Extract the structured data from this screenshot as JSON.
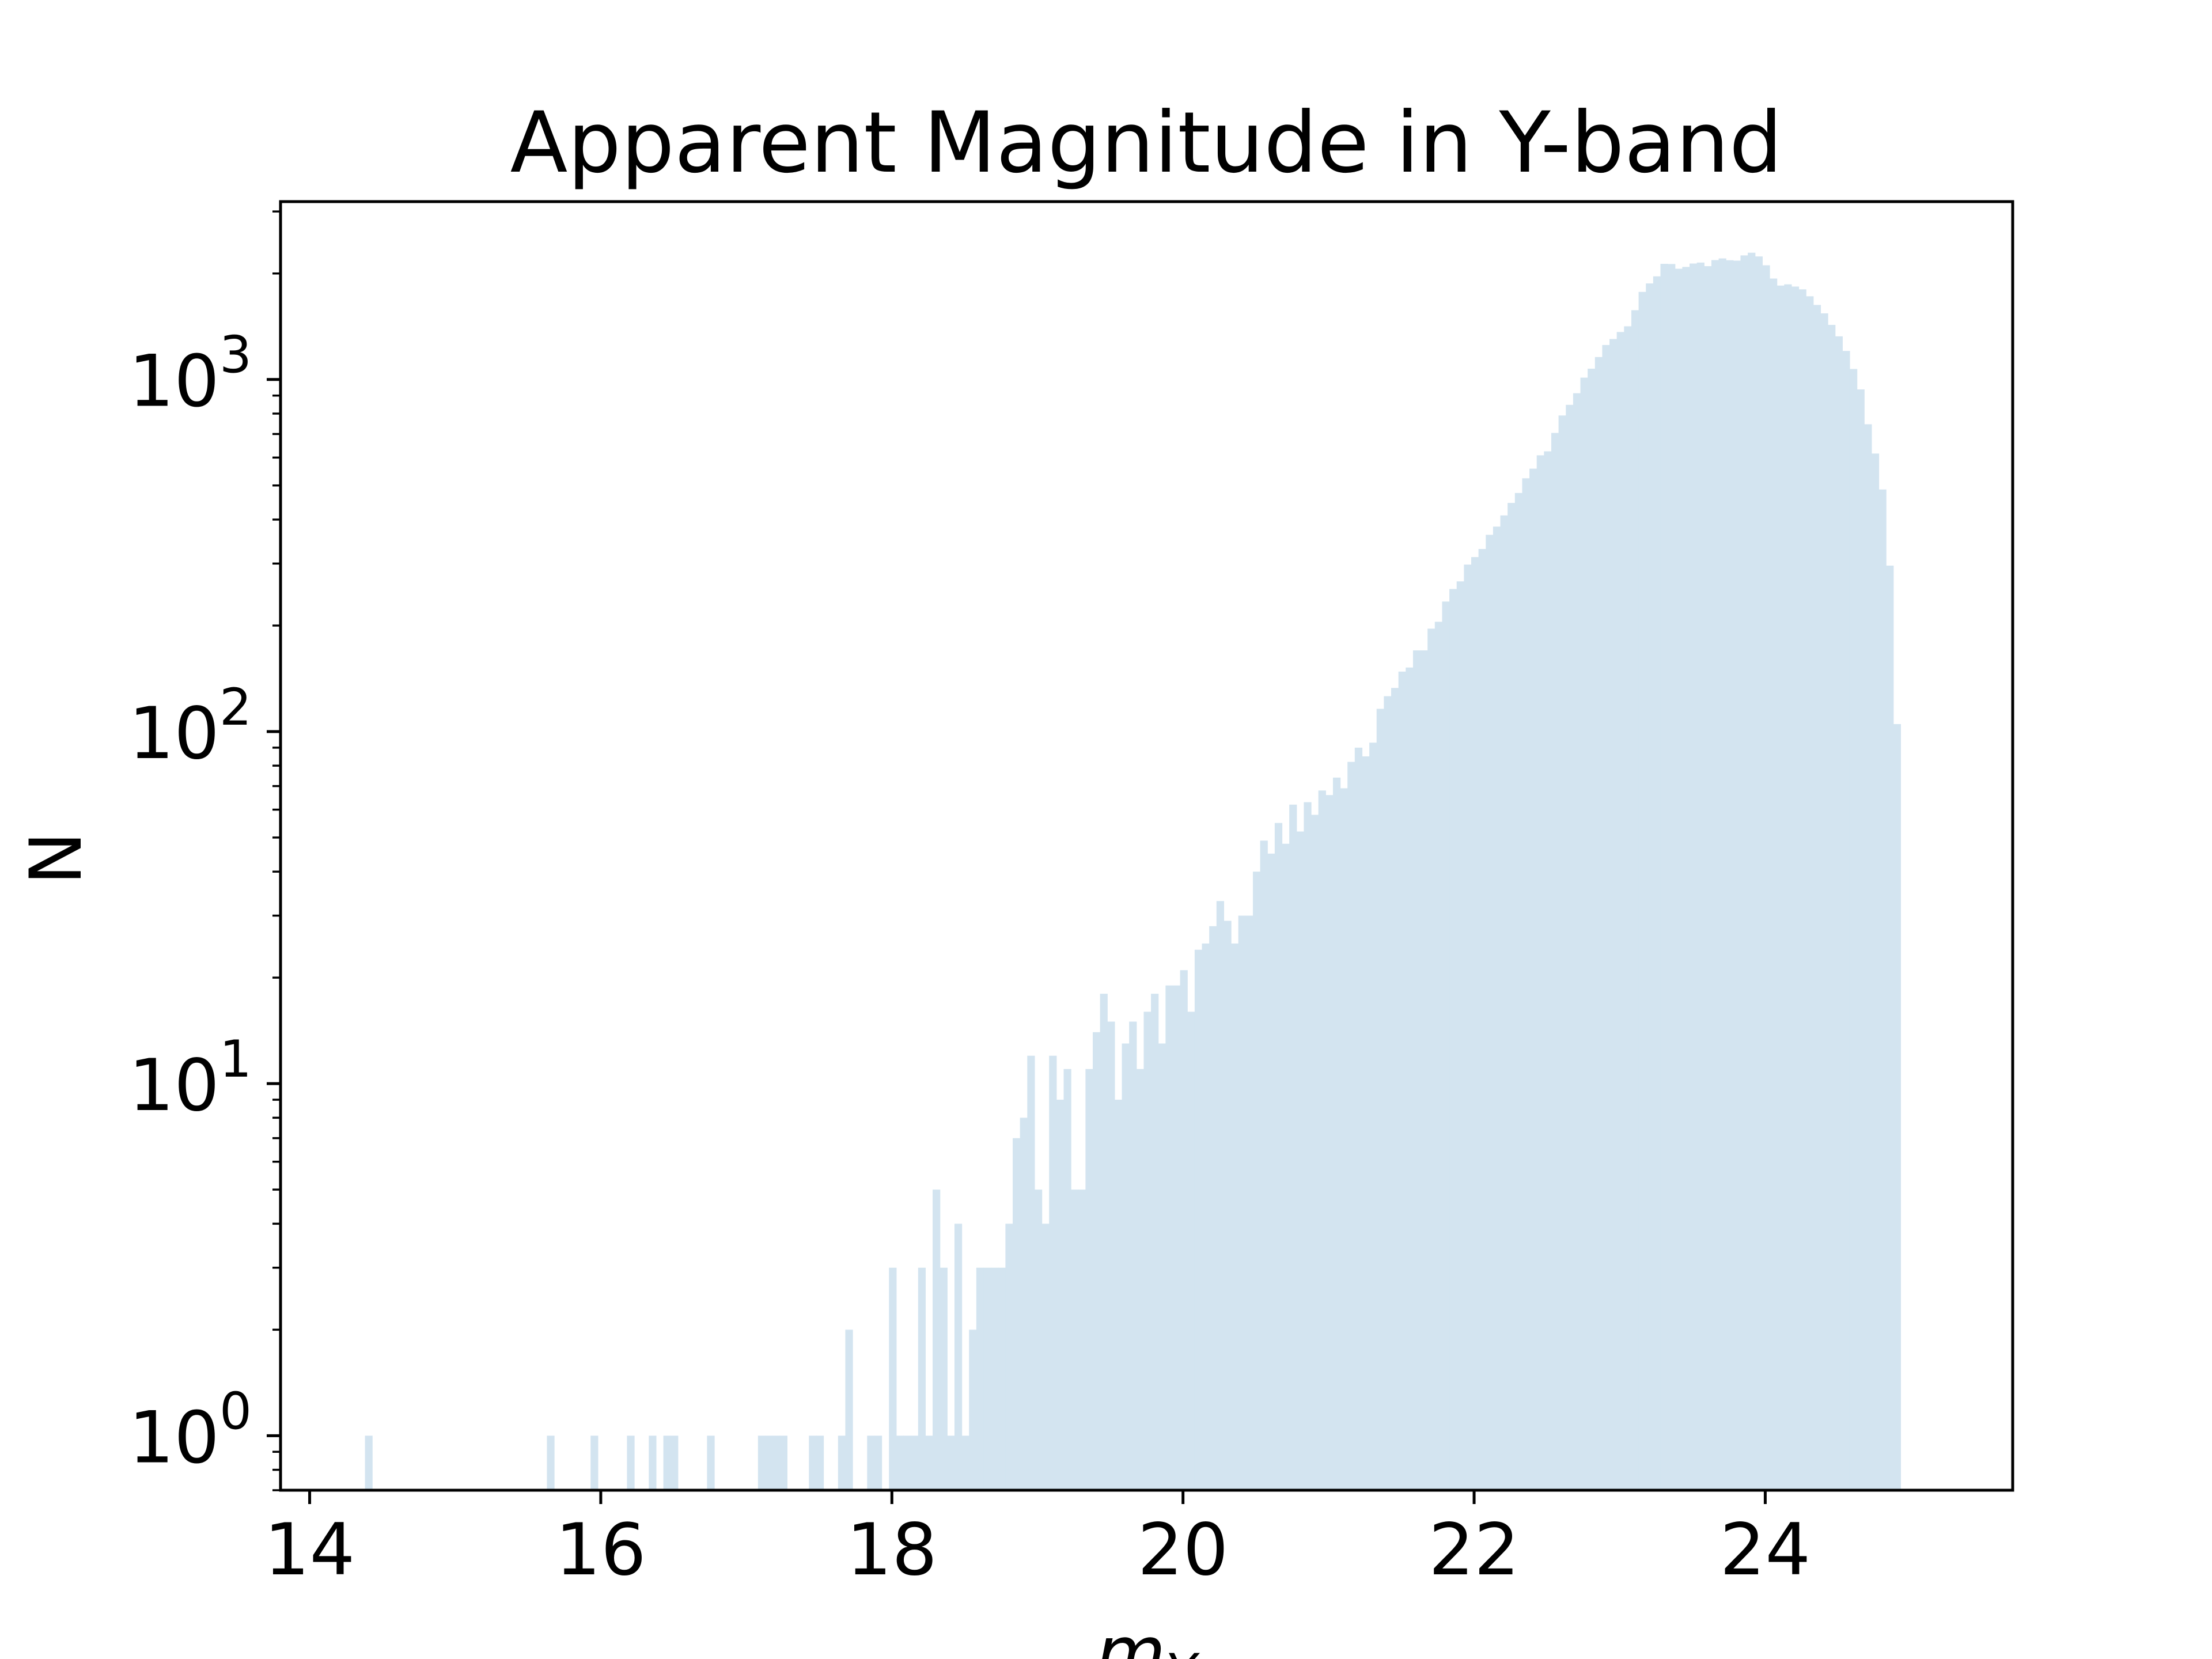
{
  "chart_data": {
    "type": "bar",
    "title": "Apparent Magnitude in Y-band",
    "xlabel": "m_Y",
    "xlabel_main": "m",
    "xlabel_sub": "Y",
    "ylabel": "N",
    "yscale": "log",
    "xlim": [
      13.8,
      25.7
    ],
    "ylim": [
      0.7,
      3200
    ],
    "grid": false,
    "legend": "none",
    "bar_color": "#d3e4f0",
    "x_ticks": [
      {
        "value": 14,
        "label": "14"
      },
      {
        "value": 16,
        "label": "16"
      },
      {
        "value": 18,
        "label": "18"
      },
      {
        "value": 20,
        "label": "20"
      },
      {
        "value": 22,
        "label": "22"
      },
      {
        "value": 24,
        "label": "24"
      }
    ],
    "y_ticks": [
      {
        "value": 1,
        "base": "10",
        "exp": "0"
      },
      {
        "value": 10,
        "base": "10",
        "exp": "1"
      },
      {
        "value": 100,
        "base": "10",
        "exp": "2"
      },
      {
        "value": 1000,
        "base": "10",
        "exp": "3"
      }
    ],
    "bin_width": 0.05,
    "bins": [
      [
        14.38,
        1
      ],
      [
        15.63,
        1
      ],
      [
        15.93,
        1
      ],
      [
        16.18,
        1
      ],
      [
        16.33,
        1
      ],
      [
        16.43,
        1
      ],
      [
        16.48,
        1
      ],
      [
        16.73,
        1
      ],
      [
        17.08,
        1
      ],
      [
        17.13,
        1
      ],
      [
        17.18,
        1
      ],
      [
        17.23,
        1
      ],
      [
        17.43,
        1
      ],
      [
        17.48,
        1
      ],
      [
        17.63,
        1
      ],
      [
        17.68,
        2
      ],
      [
        17.83,
        1
      ],
      [
        17.88,
        1
      ],
      [
        17.98,
        3
      ],
      [
        18.03,
        1
      ],
      [
        18.08,
        1
      ],
      [
        18.13,
        1
      ],
      [
        18.18,
        3
      ],
      [
        18.23,
        1
      ],
      [
        18.28,
        5
      ],
      [
        18.33,
        3
      ],
      [
        18.38,
        1
      ],
      [
        18.43,
        4
      ],
      [
        18.48,
        1
      ],
      [
        18.53,
        2
      ],
      [
        18.58,
        3
      ],
      [
        18.63,
        3
      ],
      [
        18.68,
        3
      ],
      [
        18.73,
        3
      ],
      [
        18.78,
        4
      ],
      [
        18.83,
        7
      ],
      [
        18.88,
        8
      ],
      [
        18.93,
        12
      ],
      [
        18.98,
        5
      ],
      [
        19.03,
        4
      ],
      [
        19.08,
        12
      ],
      [
        19.13,
        9
      ],
      [
        19.18,
        11
      ],
      [
        19.23,
        5
      ],
      [
        19.28,
        5
      ],
      [
        19.33,
        11
      ],
      [
        19.38,
        14
      ],
      [
        19.43,
        18
      ],
      [
        19.48,
        15
      ],
      [
        19.53,
        9
      ],
      [
        19.58,
        13
      ],
      [
        19.63,
        15
      ],
      [
        19.68,
        11
      ],
      [
        19.73,
        16
      ],
      [
        19.78,
        18
      ],
      [
        19.83,
        13
      ],
      [
        19.88,
        19
      ],
      [
        19.93,
        19
      ],
      [
        19.98,
        21
      ],
      [
        20.03,
        16
      ],
      [
        20.08,
        24
      ],
      [
        20.13,
        25
      ],
      [
        20.18,
        28
      ],
      [
        20.23,
        33
      ],
      [
        20.28,
        29
      ],
      [
        20.33,
        25
      ],
      [
        20.38,
        30
      ],
      [
        20.43,
        30
      ],
      [
        20.48,
        40
      ],
      [
        20.53,
        49
      ],
      [
        20.58,
        45
      ],
      [
        20.63,
        55
      ],
      [
        20.68,
        48
      ],
      [
        20.73,
        62
      ],
      [
        20.78,
        52
      ],
      [
        20.83,
        63
      ],
      [
        20.88,
        58
      ],
      [
        20.93,
        68
      ],
      [
        20.98,
        66
      ],
      [
        21.03,
        74
      ],
      [
        21.08,
        69
      ],
      [
        21.13,
        82
      ],
      [
        21.18,
        90
      ],
      [
        21.23,
        85
      ],
      [
        21.28,
        93
      ],
      [
        21.33,
        116
      ],
      [
        21.38,
        126
      ],
      [
        21.43,
        133
      ],
      [
        21.48,
        148
      ],
      [
        21.53,
        152
      ],
      [
        21.58,
        170
      ],
      [
        21.63,
        170
      ],
      [
        21.68,
        196
      ],
      [
        21.73,
        205
      ],
      [
        21.78,
        234
      ],
      [
        21.83,
        254
      ],
      [
        21.88,
        267
      ],
      [
        21.93,
        298
      ],
      [
        21.98,
        313
      ],
      [
        22.03,
        330
      ],
      [
        22.08,
        362
      ],
      [
        22.13,
        382
      ],
      [
        22.18,
        411
      ],
      [
        22.23,
        446
      ],
      [
        22.28,
        476
      ],
      [
        22.33,
        524
      ],
      [
        22.38,
        558
      ],
      [
        22.43,
        609
      ],
      [
        22.48,
        625
      ],
      [
        22.53,
        705
      ],
      [
        22.58,
        790
      ],
      [
        22.63,
        847
      ],
      [
        22.68,
        914
      ],
      [
        22.73,
        1012
      ],
      [
        22.78,
        1073
      ],
      [
        22.83,
        1158
      ],
      [
        22.88,
        1253
      ],
      [
        22.93,
        1303
      ],
      [
        22.98,
        1364
      ],
      [
        23.03,
        1416
      ],
      [
        23.08,
        1573
      ],
      [
        23.13,
        1773
      ],
      [
        23.18,
        1874
      ],
      [
        23.23,
        1963
      ],
      [
        23.28,
        2130
      ],
      [
        23.33,
        2128
      ],
      [
        23.38,
        2063
      ],
      [
        23.43,
        2088
      ],
      [
        23.48,
        2134
      ],
      [
        23.53,
        2148
      ],
      [
        23.58,
        2098
      ],
      [
        23.63,
        2183
      ],
      [
        23.68,
        2207
      ],
      [
        23.73,
        2181
      ],
      [
        23.78,
        2175
      ],
      [
        23.83,
        2251
      ],
      [
        23.88,
        2291
      ],
      [
        23.93,
        2236
      ],
      [
        23.98,
        2110
      ],
      [
        24.03,
        1935
      ],
      [
        24.08,
        1848
      ],
      [
        24.13,
        1863
      ],
      [
        24.18,
        1836
      ],
      [
        24.23,
        1803
      ],
      [
        24.28,
        1723
      ],
      [
        24.33,
        1628
      ],
      [
        24.38,
        1541
      ],
      [
        24.43,
        1429
      ],
      [
        24.48,
        1326
      ],
      [
        24.53,
        1205
      ],
      [
        24.58,
        1071
      ],
      [
        24.63,
        937
      ],
      [
        24.68,
        746
      ],
      [
        24.73,
        616
      ],
      [
        24.78,
        487
      ],
      [
        24.83,
        296
      ],
      [
        24.88,
        105
      ]
    ]
  }
}
